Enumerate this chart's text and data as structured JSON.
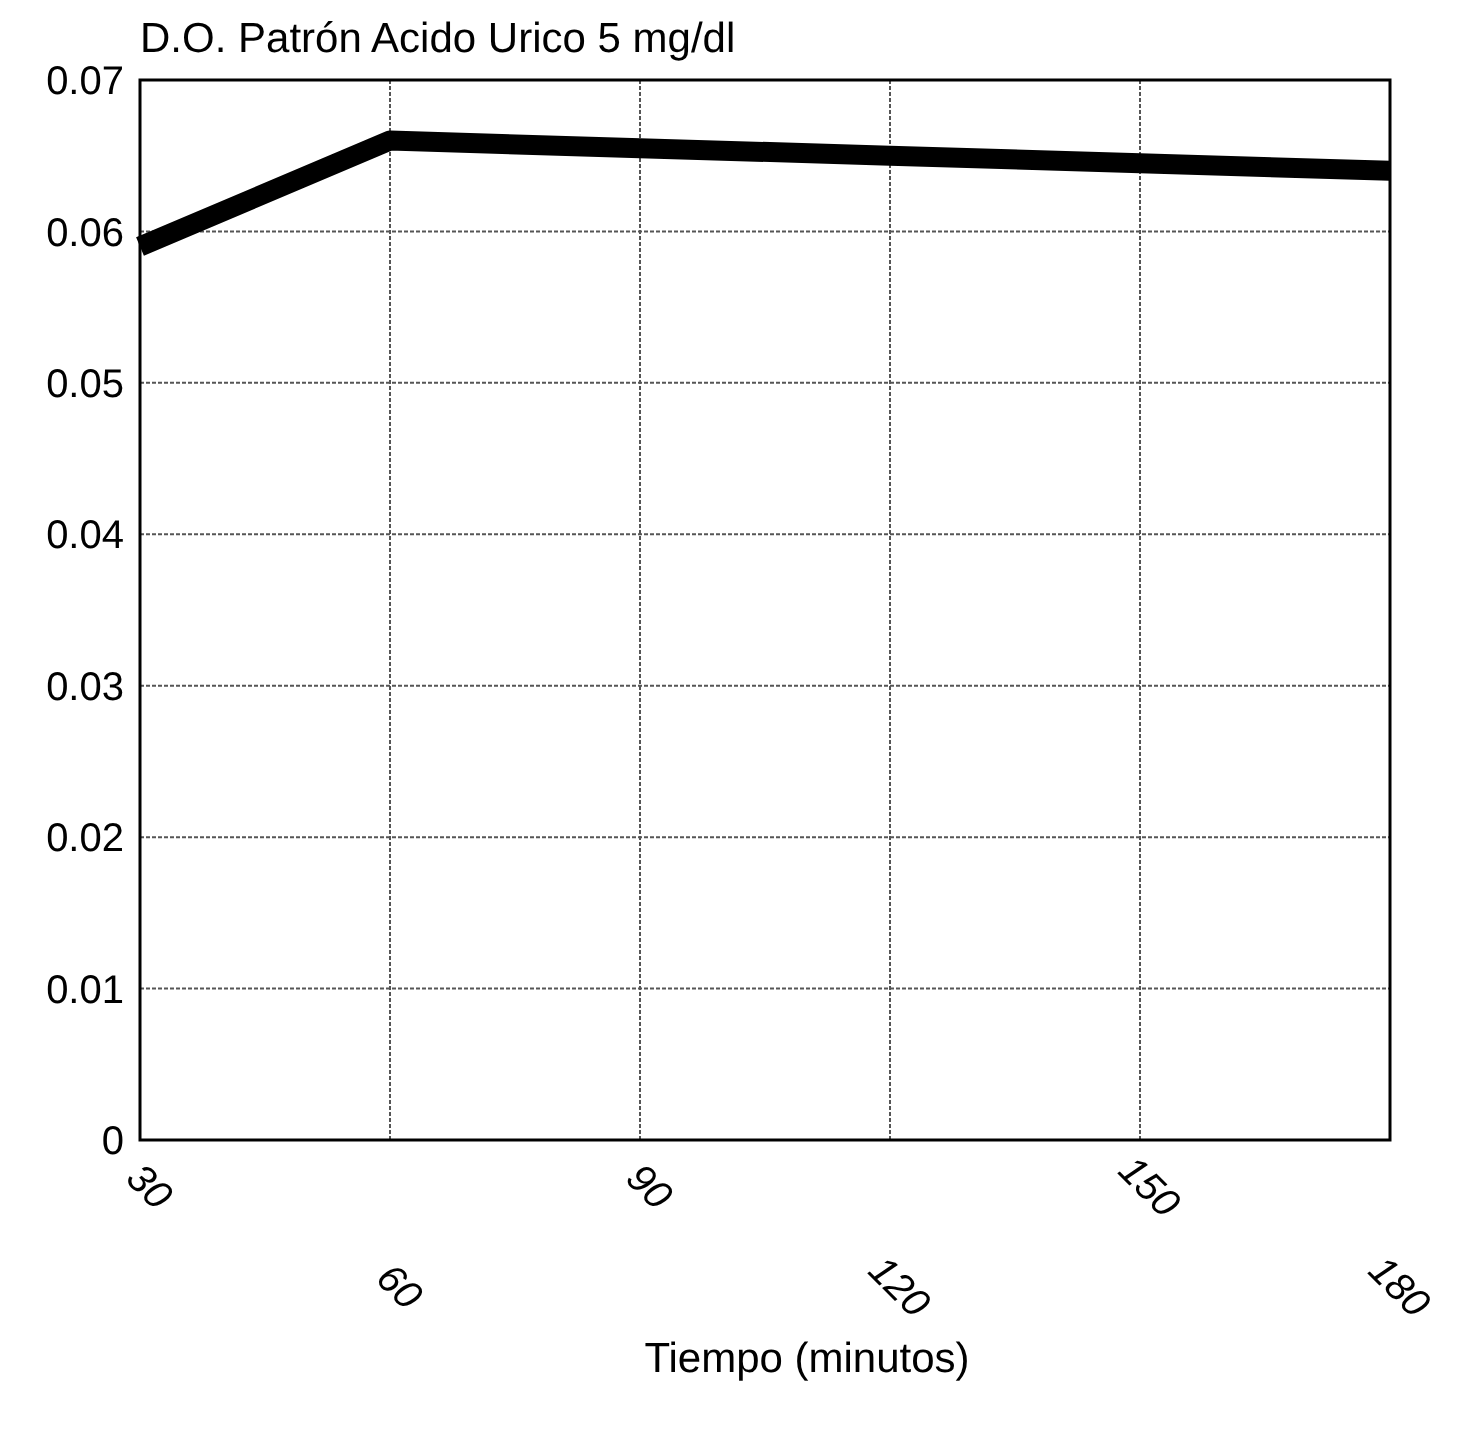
{
  "chart_data": {
    "type": "line",
    "title": "D.O. Patrón Acido Urico 5 mg/dl",
    "xlabel": "Tiempo (minutos)",
    "categories": [
      "30",
      "60",
      "90",
      "120",
      "150",
      "180"
    ],
    "series": [
      {
        "color": "#000000",
        "values": [
          0.059,
          0.066,
          0.0655,
          0.065,
          0.0645,
          0.064
        ]
      }
    ],
    "ylim": [
      0,
      0.07
    ],
    "yticks": [
      0,
      0.01,
      0.02,
      0.03,
      0.04,
      0.05,
      0.06,
      0.07
    ],
    "grid": true,
    "marker": "none",
    "line_style": "solid"
  }
}
